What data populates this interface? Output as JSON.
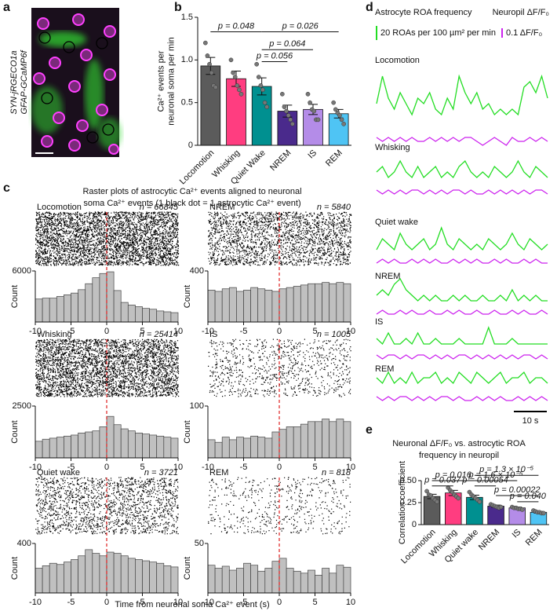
{
  "panel_labels": [
    "a",
    "b",
    "c",
    "d",
    "e"
  ],
  "image": {
    "labels": [
      "SYN-jRGECO1a",
      "GFAP-GCaMP6f"
    ]
  },
  "raster_title": [
    "Raster plots of astrocytic Ca²⁺ events aligned to neuronal",
    "soma Ca²⁺ events (1 black dot = 1 astrocytic Ca²⁺ event)"
  ],
  "raster_xlabel": "Time from neuronal soma Ca²⁺ event (s)",
  "chart_data": [
    {
      "type": "bar",
      "ylabel": [
        "Ca²⁺ events per",
        "neuronal soma per min"
      ],
      "categories": [
        "Locomotion",
        "Whisking",
        "Quiet Wake",
        "NREM",
        "IS",
        "REM"
      ],
      "values": [
        0.93,
        0.78,
        0.69,
        0.4,
        0.42,
        0.37
      ],
      "errors": [
        0.1,
        0.09,
        0.1,
        0.07,
        0.06,
        0.05
      ],
      "points": [
        [
          1.2,
          1.05,
          0.95,
          0.85,
          0.7,
          0.68
        ],
        [
          1.0,
          0.85,
          0.8,
          0.7,
          0.65,
          0.6
        ],
        [
          0.95,
          0.8,
          0.7,
          0.65,
          0.5,
          0.45
        ],
        [
          0.6,
          0.45,
          0.4,
          0.35,
          0.3,
          0.25
        ],
        [
          0.6,
          0.5,
          0.42,
          0.4,
          0.3,
          0.3
        ],
        [
          0.5,
          0.42,
          0.38,
          0.35,
          0.3,
          0.25
        ]
      ],
      "colors": [
        "#5b5b5b",
        "#ff3d80",
        "#009090",
        "#4a2a8c",
        "#b48ce8",
        "#4fc4f4"
      ],
      "ylim": [
        0,
        1.5
      ],
      "yticks": [
        0,
        0.5,
        {
          "value": 1,
          "label": "1.0"
        },
        1.5
      ],
      "annotations": [
        "p = 0.048",
        "p = 0.026",
        "p = 0.064",
        "p = 0.056"
      ]
    },
    {
      "type": "bar",
      "title": [
        "Neuronal ΔF/F₀ vs. astrocytic ROA",
        "frequency in neuropil"
      ],
      "ylabel": [
        "Correlation coefficient"
      ],
      "categories": [
        "Locomotion",
        "Whisking",
        "Quiet wake",
        "NREM",
        "IS",
        "REM"
      ],
      "values": [
        0.32,
        0.36,
        0.31,
        0.21,
        0.19,
        0.14
      ],
      "errors": [
        0.025,
        0.03,
        0.025,
        0.012,
        0.01,
        0.01
      ],
      "points": [
        [
          0.38,
          0.34,
          0.33,
          0.3,
          0.28,
          0.26
        ],
        [
          0.42,
          0.39,
          0.37,
          0.34,
          0.32,
          0.3
        ],
        [
          0.37,
          0.34,
          0.32,
          0.3,
          0.28,
          0.26
        ],
        [
          0.23,
          0.22,
          0.21,
          0.2,
          0.19,
          0.2
        ],
        [
          0.2,
          0.19,
          0.19,
          0.18,
          0.18,
          0.17
        ],
        [
          0.16,
          0.15,
          0.14,
          0.14,
          0.13,
          0.13
        ]
      ],
      "colors": [
        "#5b5b5b",
        "#ff3d80",
        "#009090",
        "#4a2a8c",
        "#b48ce8",
        "#4fc4f4"
      ],
      "ylim": [
        0,
        0.5
      ],
      "yticks": [
        0,
        0.25,
        {
          "value": 0.5,
          "label": "0.50"
        }
      ],
      "annotations": [
        "p = 0.037",
        "p = 0.016",
        "p = 0.00054",
        "p = 1.6 × 10⁻⁵",
        "p = 1.3 × 10⁻⁵",
        "p = 0.00022",
        "p = 0.040"
      ]
    },
    {
      "type": "histogram",
      "title": "Locomotion",
      "annotation": "n = 66845",
      "bins": [
        -10,
        -9,
        -8,
        -7,
        -6,
        -5,
        -4,
        -3,
        -2,
        -1,
        0,
        1,
        2,
        3,
        4,
        5,
        6,
        7,
        8,
        9,
        10
      ],
      "counts": [
        2700,
        2800,
        2800,
        3000,
        3200,
        3400,
        3800,
        4500,
        5200,
        5700,
        5900,
        3700,
        2300,
        2000,
        1800,
        1600,
        1500,
        1300,
        1200,
        1100
      ],
      "xlim": [
        -10,
        10
      ],
      "xticks": [
        -10,
        -5,
        0,
        5,
        10
      ],
      "ylim": [
        0,
        6000
      ],
      "yticks": [
        6000
      ],
      "ylabel": "Count",
      "color": "#c0c0c0"
    },
    {
      "type": "histogram",
      "title": "NREM",
      "annotation": "n = 5840",
      "bins": [
        -10,
        -9,
        -8,
        -7,
        -6,
        -5,
        -4,
        -3,
        -2,
        -1,
        0,
        1,
        2,
        3,
        4,
        5,
        6,
        7,
        8,
        9,
        10
      ],
      "counts": [
        250,
        240,
        260,
        270,
        240,
        250,
        270,
        260,
        250,
        240,
        260,
        270,
        280,
        290,
        300,
        300,
        310,
        300,
        310,
        300
      ],
      "xlim": [
        -10,
        10
      ],
      "xticks": [
        -10,
        -5,
        0,
        5,
        10
      ],
      "ylim": [
        0,
        400
      ],
      "yticks": [
        400
      ],
      "ylabel": "Count",
      "color": "#c0c0c0"
    },
    {
      "type": "histogram",
      "title": "Whisking",
      "annotation": "n = 25414",
      "bins": [
        -10,
        -9,
        -8,
        -7,
        -6,
        -5,
        -4,
        -3,
        -2,
        -1,
        0,
        1,
        2,
        3,
        4,
        5,
        6,
        7,
        8,
        9,
        10
      ],
      "counts": [
        800,
        900,
        950,
        1000,
        1050,
        1100,
        1200,
        1250,
        1300,
        1500,
        2000,
        1600,
        1400,
        1300,
        1200,
        1150,
        1100,
        1050,
        1000,
        950
      ],
      "xlim": [
        -10,
        10
      ],
      "xticks": [
        -10,
        -5,
        0,
        5,
        10
      ],
      "ylim": [
        0,
        2500
      ],
      "yticks": [
        2500
      ],
      "ylabel": "Count",
      "color": "#c0c0c0"
    },
    {
      "type": "histogram",
      "title": "IS",
      "annotation": "n = 1005",
      "bins": [
        -10,
        -9,
        -8,
        -7,
        -6,
        -5,
        -4,
        -3,
        -2,
        -1,
        0,
        1,
        2,
        3,
        4,
        5,
        6,
        7,
        8,
        9,
        10
      ],
      "counts": [
        35,
        30,
        40,
        35,
        40,
        38,
        42,
        40,
        38,
        50,
        55,
        60,
        60,
        65,
        70,
        70,
        75,
        70,
        75,
        70
      ],
      "xlim": [
        -10,
        10
      ],
      "xticks": [
        -10,
        -5,
        0,
        5,
        10
      ],
      "ylim": [
        0,
        100
      ],
      "yticks": [
        100
      ],
      "ylabel": "Count",
      "color": "#c0c0c0"
    },
    {
      "type": "histogram",
      "title": "Quiet wake",
      "annotation": "n = 3721",
      "bins": [
        -10,
        -9,
        -8,
        -7,
        -6,
        -5,
        -4,
        -3,
        -2,
        -1,
        0,
        1,
        2,
        3,
        4,
        5,
        6,
        7,
        8,
        9,
        10
      ],
      "counts": [
        200,
        220,
        240,
        230,
        250,
        270,
        300,
        350,
        320,
        300,
        330,
        320,
        300,
        280,
        270,
        260,
        250,
        240,
        220,
        210
      ],
      "xlim": [
        -10,
        10
      ],
      "xticks": [
        -10,
        -5,
        0,
        5,
        10
      ],
      "ylim": [
        0,
        400
      ],
      "yticks": [
        400
      ],
      "ylabel": "Count",
      "color": "#c0c0c0"
    },
    {
      "type": "histogram",
      "title": "REM",
      "annotation": "n = 818",
      "bins": [
        -10,
        -9,
        -8,
        -7,
        -6,
        -5,
        -4,
        -3,
        -2,
        -1,
        0,
        1,
        2,
        3,
        4,
        5,
        6,
        7,
        8,
        9,
        10
      ],
      "counts": [
        28,
        25,
        27,
        23,
        25,
        30,
        28,
        22,
        25,
        32,
        35,
        25,
        22,
        20,
        23,
        18,
        25,
        20,
        28,
        26
      ],
      "xlim": [
        -10,
        10
      ],
      "xticks": [
        -10,
        -5,
        0,
        5,
        10
      ],
      "ylim": [
        0,
        50
      ],
      "yticks": [
        50
      ],
      "ylabel": "Count",
      "color": "#c0c0c0"
    },
    {
      "type": "traces",
      "legend": [
        {
          "name": "Astrocyte ROA frequency",
          "color": "#22dd22",
          "scale_label": "20 ROAs per 100 µm² per min"
        },
        {
          "name": "Neuropil ΔF/F₀",
          "color": "#cc22ee",
          "scale_label": "0.1 ΔF/F₀"
        }
      ],
      "time_scale_label": "10 s",
      "panels": [
        {
          "title": "Locomotion",
          "series": [
            {
              "values": [
                4,
                9,
                5,
                3,
                6,
                4,
                2,
                5,
                4,
                6,
                3,
                2,
                5,
                3,
                9,
                6,
                4,
                6,
                3,
                4,
                2,
                3,
                2,
                3,
                2,
                7,
                8,
                6,
                9,
                5
              ]
            },
            {
              "values": [
                2,
                1,
                2,
                1,
                2,
                1,
                2,
                1,
                1,
                2,
                1,
                2,
                1,
                2,
                1,
                2,
                2,
                1,
                0,
                1,
                2,
                1,
                0,
                2,
                1,
                1,
                2,
                1,
                2,
                1
              ]
            }
          ]
        },
        {
          "title": "Whisking",
          "series": [
            {
              "values": [
                3,
                4,
                2,
                3,
                5,
                3,
                2,
                4,
                2,
                3,
                4,
                2,
                3,
                2,
                4,
                5,
                3,
                2,
                3,
                2,
                4,
                3,
                2,
                3,
                5,
                3,
                2,
                4,
                3,
                2
              ]
            },
            {
              "values": [
                2,
                1,
                2,
                1,
                2,
                1,
                2,
                2,
                1,
                2,
                1,
                2,
                1,
                2,
                2,
                1,
                2,
                1,
                1,
                2,
                1,
                2,
                1,
                2,
                1,
                2,
                1,
                2,
                2,
                1
              ]
            }
          ]
        },
        {
          "title": "Quiet wake",
          "series": [
            {
              "values": [
                1,
                3,
                2,
                1,
                4,
                2,
                1,
                2,
                3,
                1,
                2,
                5,
                2,
                1,
                3,
                2,
                1,
                2,
                1,
                3,
                2,
                1,
                2,
                4,
                2,
                1,
                3,
                2,
                1,
                2
              ]
            },
            {
              "values": [
                1,
                2,
                1,
                2,
                1,
                1,
                2,
                1,
                2,
                1,
                2,
                1,
                1,
                2,
                1,
                2,
                1,
                2,
                1,
                1,
                2,
                1,
                2,
                1,
                1,
                2,
                1,
                2,
                1,
                1
              ]
            }
          ]
        },
        {
          "title": "NREM",
          "series": [
            {
              "values": [
                2,
                3,
                2,
                4,
                5,
                3,
                2,
                1,
                2,
                1,
                2,
                1,
                1,
                2,
                1,
                2,
                1,
                1,
                2,
                1,
                1,
                2,
                1,
                3,
                1,
                2,
                1,
                2,
                1,
                1
              ]
            },
            {
              "values": [
                1,
                2,
                1,
                1,
                2,
                1,
                2,
                1,
                1,
                2,
                1,
                1,
                2,
                1,
                2,
                1,
                1,
                2,
                1,
                1,
                2,
                1,
                1,
                2,
                1,
                2,
                1,
                1,
                2,
                1
              ]
            }
          ]
        },
        {
          "title": "IS",
          "series": [
            {
              "values": [
                2,
                1,
                3,
                1,
                1,
                2,
                1,
                3,
                1,
                1,
                2,
                1,
                1,
                1,
                2,
                1,
                1,
                1,
                1,
                4,
                1,
                1,
                1,
                2,
                1,
                1,
                1,
                1,
                1,
                1
              ]
            },
            {
              "values": [
                2,
                1,
                2,
                2,
                1,
                2,
                1,
                2,
                2,
                1,
                2,
                1,
                2,
                1,
                2,
                2,
                1,
                2,
                1,
                2,
                1,
                2,
                1,
                2,
                1,
                2,
                2,
                1,
                2,
                1
              ]
            }
          ]
        },
        {
          "title": "REM",
          "series": [
            {
              "values": [
                3,
                2,
                4,
                2,
                3,
                2,
                4,
                2,
                3,
                3,
                4,
                2,
                3,
                2,
                4,
                3,
                2,
                4,
                3,
                2,
                3,
                4,
                2,
                3,
                3,
                4,
                2,
                3,
                3,
                2
              ]
            },
            {
              "values": [
                2,
                1,
                2,
                1,
                2,
                2,
                1,
                2,
                1,
                2,
                1,
                2,
                2,
                1,
                2,
                1,
                1,
                2,
                1,
                2,
                1,
                2,
                1,
                1,
                2,
                1,
                2,
                1,
                2,
                1
              ]
            }
          ]
        }
      ]
    }
  ]
}
